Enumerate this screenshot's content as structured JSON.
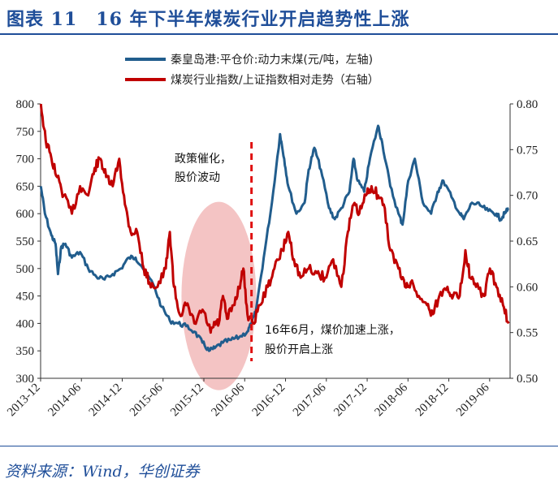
{
  "figure": {
    "title": "图表 11　16 年下半年煤炭行业开启趋势性上涨",
    "source": "资料来源：Wind，华创证券"
  },
  "colors": {
    "series_left": "#215d8d",
    "series_right": "#c00000",
    "ellipse": "#f0b0b0",
    "accent": "#1f4e99"
  },
  "chart_data": {
    "type": "line",
    "x_tick_labels": [
      "2013-12",
      "2014-06",
      "2014-12",
      "2015-06",
      "2015-12",
      "2016-06",
      "2016-12",
      "2017-06",
      "2017-12",
      "2018-06",
      "2018-12",
      "2019-06"
    ],
    "x_range": [
      2013.917,
      2019.667
    ],
    "y_left": {
      "ylim": [
        300,
        800
      ],
      "ticks": [
        "300",
        "350",
        "400",
        "450",
        "500",
        "550",
        "600",
        "650",
        "700",
        "750",
        "800"
      ]
    },
    "y_right": {
      "ylim": [
        0.5,
        0.8
      ],
      "ticks": [
        "0.50",
        "0.55",
        "0.60",
        "0.65",
        "0.70",
        "0.75",
        "0.80"
      ]
    },
    "series": [
      {
        "name": "秦皇岛港:平仓价:动力末煤(元/吨，左轴)",
        "axis": "left",
        "points": [
          [
            2013.92,
            650
          ],
          [
            2013.97,
            600
          ],
          [
            2014.05,
            560
          ],
          [
            2014.1,
            545
          ],
          [
            2014.13,
            490
          ],
          [
            2014.17,
            540
          ],
          [
            2014.22,
            545
          ],
          [
            2014.3,
            520
          ],
          [
            2014.4,
            530
          ],
          [
            2014.5,
            500
          ],
          [
            2014.6,
            485
          ],
          [
            2014.7,
            480
          ],
          [
            2014.8,
            490
          ],
          [
            2014.9,
            500
          ],
          [
            2015.0,
            520
          ],
          [
            2015.08,
            520
          ],
          [
            2015.15,
            505
          ],
          [
            2015.3,
            470
          ],
          [
            2015.4,
            430
          ],
          [
            2015.5,
            405
          ],
          [
            2015.6,
            400
          ],
          [
            2015.7,
            395
          ],
          [
            2015.8,
            385
          ],
          [
            2015.9,
            365
          ],
          [
            2015.98,
            350
          ],
          [
            2016.05,
            355
          ],
          [
            2016.15,
            365
          ],
          [
            2016.25,
            370
          ],
          [
            2016.35,
            375
          ],
          [
            2016.45,
            385
          ],
          [
            2016.5,
            400
          ],
          [
            2016.55,
            420
          ],
          [
            2016.65,
            520
          ],
          [
            2016.75,
            620
          ],
          [
            2016.85,
            745
          ],
          [
            2016.9,
            700
          ],
          [
            2016.95,
            650
          ],
          [
            2017.05,
            600
          ],
          [
            2017.15,
            620
          ],
          [
            2017.2,
            680
          ],
          [
            2017.27,
            720
          ],
          [
            2017.35,
            680
          ],
          [
            2017.45,
            610
          ],
          [
            2017.52,
            590
          ],
          [
            2017.6,
            610
          ],
          [
            2017.7,
            640
          ],
          [
            2017.75,
            700
          ],
          [
            2017.8,
            660
          ],
          [
            2017.88,
            640
          ],
          [
            2017.95,
            700
          ],
          [
            2018.05,
            760
          ],
          [
            2018.1,
            730
          ],
          [
            2018.2,
            650
          ],
          [
            2018.3,
            600
          ],
          [
            2018.35,
            580
          ],
          [
            2018.42,
            660
          ],
          [
            2018.5,
            700
          ],
          [
            2018.6,
            620
          ],
          [
            2018.7,
            600
          ],
          [
            2018.78,
            640
          ],
          [
            2018.85,
            660
          ],
          [
            2018.95,
            630
          ],
          [
            2019.05,
            600
          ],
          [
            2019.1,
            590
          ],
          [
            2019.2,
            620
          ],
          [
            2019.3,
            615
          ],
          [
            2019.4,
            605
          ],
          [
            2019.5,
            600
          ],
          [
            2019.55,
            590
          ],
          [
            2019.6,
            600
          ],
          [
            2019.65,
            610
          ]
        ]
      },
      {
        "name": "煤炭行业指数/上证指数相对走势（右轴）",
        "axis": "right",
        "points": [
          [
            2013.92,
            0.8
          ],
          [
            2013.98,
            0.76
          ],
          [
            2014.05,
            0.74
          ],
          [
            2014.12,
            0.72
          ],
          [
            2014.2,
            0.7
          ],
          [
            2014.3,
            0.68
          ],
          [
            2014.4,
            0.71
          ],
          [
            2014.5,
            0.7
          ],
          [
            2014.58,
            0.73
          ],
          [
            2014.65,
            0.74
          ],
          [
            2014.72,
            0.72
          ],
          [
            2014.8,
            0.71
          ],
          [
            2014.88,
            0.74
          ],
          [
            2014.95,
            0.69
          ],
          [
            2015.02,
            0.66
          ],
          [
            2015.1,
            0.66
          ],
          [
            2015.18,
            0.62
          ],
          [
            2015.25,
            0.605
          ],
          [
            2015.35,
            0.6
          ],
          [
            2015.45,
            0.62
          ],
          [
            2015.5,
            0.66
          ],
          [
            2015.55,
            0.6
          ],
          [
            2015.62,
            0.57
          ],
          [
            2015.7,
            0.58
          ],
          [
            2015.8,
            0.56
          ],
          [
            2015.9,
            0.575
          ],
          [
            2016.0,
            0.55
          ],
          [
            2016.05,
            0.56
          ],
          [
            2016.1,
            0.56
          ],
          [
            2016.15,
            0.59
          ],
          [
            2016.2,
            0.565
          ],
          [
            2016.28,
            0.58
          ],
          [
            2016.35,
            0.6
          ],
          [
            2016.4,
            0.62
          ],
          [
            2016.45,
            0.57
          ],
          [
            2016.52,
            0.56
          ],
          [
            2016.6,
            0.58
          ],
          [
            2016.7,
            0.6
          ],
          [
            2016.78,
            0.62
          ],
          [
            2016.88,
            0.64
          ],
          [
            2016.95,
            0.66
          ],
          [
            2017.02,
            0.63
          ],
          [
            2017.1,
            0.61
          ],
          [
            2017.2,
            0.62
          ],
          [
            2017.3,
            0.615
          ],
          [
            2017.4,
            0.61
          ],
          [
            2017.5,
            0.63
          ],
          [
            2017.6,
            0.6
          ],
          [
            2017.68,
            0.66
          ],
          [
            2017.75,
            0.69
          ],
          [
            2017.82,
            0.68
          ],
          [
            2017.9,
            0.7
          ],
          [
            2017.97,
            0.71
          ],
          [
            2018.05,
            0.7
          ],
          [
            2018.12,
            0.69
          ],
          [
            2018.2,
            0.64
          ],
          [
            2018.3,
            0.62
          ],
          [
            2018.38,
            0.6
          ],
          [
            2018.45,
            0.605
          ],
          [
            2018.55,
            0.59
          ],
          [
            2018.65,
            0.58
          ],
          [
            2018.72,
            0.57
          ],
          [
            2018.8,
            0.59
          ],
          [
            2018.9,
            0.6
          ],
          [
            2018.97,
            0.59
          ],
          [
            2019.05,
            0.59
          ],
          [
            2019.12,
            0.64
          ],
          [
            2019.18,
            0.61
          ],
          [
            2019.25,
            0.6
          ],
          [
            2019.35,
            0.59
          ],
          [
            2019.42,
            0.62
          ],
          [
            2019.5,
            0.6
          ],
          [
            2019.58,
            0.58
          ],
          [
            2019.65,
            0.56
          ]
        ]
      }
    ],
    "annotations": [
      {
        "lines": [
          "政策催化，",
          "股价波动"
        ]
      },
      {
        "lines": [
          "16年6月，煤价加速上涨，",
          "股价开启上涨"
        ]
      }
    ],
    "marker_line_x": 2016.5,
    "ellipse_center": [
      2016.1,
      450
    ],
    "legend_placement": "top-center"
  }
}
